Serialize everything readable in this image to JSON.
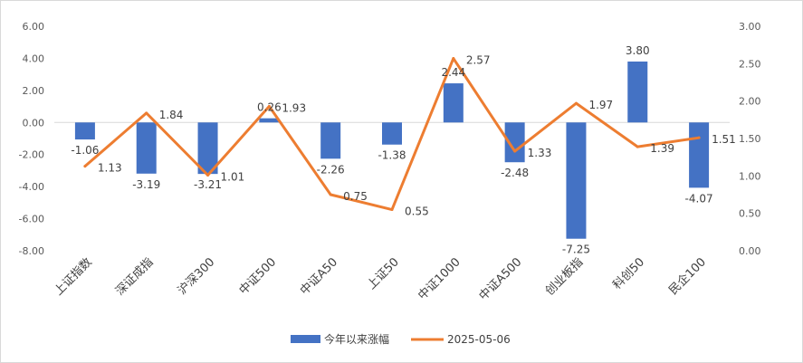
{
  "chart_data": {
    "type": "bar+line",
    "categories": [
      "上证指数",
      "深证成指",
      "沪深300",
      "中证500",
      "中证A50",
      "上证50",
      "中证1000",
      "中证A500",
      "创业板指",
      "科创50",
      "民企100"
    ],
    "series": [
      {
        "name": "今年以来涨幅",
        "type": "bar",
        "axis": "left",
        "color": "#4472C4",
        "values": [
          -1.06,
          -3.19,
          -3.21,
          0.26,
          -2.26,
          -1.38,
          2.44,
          -2.48,
          -7.25,
          3.8,
          -4.07
        ],
        "labels": [
          "-1.06",
          "-3.19",
          "-3.21",
          "0.26",
          "-2.26",
          "-1.38",
          "2.44",
          "-2.48",
          "-7.25",
          "3.80",
          "-4.07"
        ]
      },
      {
        "name": "2025-05-06",
        "type": "line",
        "axis": "right",
        "color": "#ED7D31",
        "values": [
          1.13,
          1.84,
          1.01,
          1.93,
          0.75,
          0.55,
          2.57,
          1.33,
          1.97,
          1.39,
          1.51
        ],
        "labels": [
          "1.13",
          "1.84",
          "1.01",
          "1.93",
          "0.75",
          "0.55",
          "2.57",
          "1.33",
          "1.97",
          "1.39",
          "1.51"
        ]
      }
    ],
    "y_left": {
      "min": -8,
      "max": 6,
      "ticks": [
        -8,
        -6,
        -4,
        -2,
        0,
        2,
        4,
        6
      ],
      "tick_labels": [
        "-8.00",
        "-6.00",
        "-4.00",
        "-2.00",
        "0.00",
        "2.00",
        "4.00",
        "6.00"
      ]
    },
    "y_right": {
      "min": 0,
      "max": 3,
      "ticks": [
        0,
        0.5,
        1,
        1.5,
        2,
        2.5,
        3
      ],
      "tick_labels": [
        "0.00",
        "0.50",
        "1.00",
        "1.50",
        "2.00",
        "2.50",
        "3.00"
      ]
    },
    "grid": false,
    "legend_position": "bottom",
    "title": ""
  }
}
